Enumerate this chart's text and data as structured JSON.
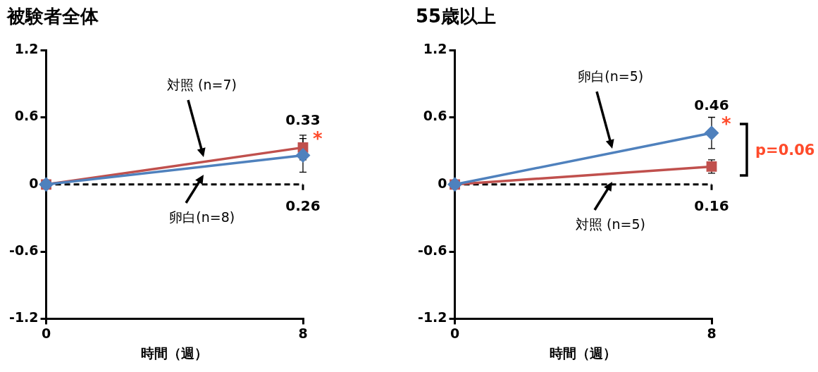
{
  "chart_data": [
    {
      "type": "line",
      "title": "被験者全体",
      "xlabel": "時間（週）",
      "categories": [
        "0",
        "8"
      ],
      "ylim": [
        -1.2,
        1.2
      ],
      "yticks": [
        -1.2,
        -0.6,
        0,
        0.6,
        1.2
      ],
      "grid": false,
      "legend": false,
      "series": [
        {
          "name": "卵白(n=8)",
          "color": "#4f81bd",
          "marker": "diamond",
          "values": [
            0,
            0.26
          ],
          "errors": [
            null,
            0.15
          ],
          "value_labels": [
            null,
            "0.26"
          ]
        },
        {
          "name": "対照 (n=7)",
          "color": "#c0504d",
          "marker": "square",
          "values": [
            0,
            0.33
          ],
          "errors": [
            null,
            0.11
          ],
          "value_labels": [
            null,
            "0.33"
          ]
        }
      ],
      "ref_lines": [
        {
          "axis": "y",
          "value": 0,
          "line_style": "dashed",
          "color": "#000000"
        }
      ],
      "annotations": [
        {
          "text": "*",
          "x": "8",
          "y": 0.33
        }
      ]
    },
    {
      "type": "line",
      "title": "55歳以上",
      "xlabel": "時間（週）",
      "categories": [
        "0",
        "8"
      ],
      "ylim": [
        -1.2,
        1.2
      ],
      "yticks": [
        -1.2,
        -0.6,
        0,
        0.6,
        1.2
      ],
      "grid": false,
      "legend": false,
      "series": [
        {
          "name": "卵白(n=5)",
          "color": "#4f81bd",
          "marker": "diamond",
          "values": [
            0,
            0.46
          ],
          "errors": [
            null,
            0.14
          ],
          "value_labels": [
            null,
            "0.46"
          ]
        },
        {
          "name": "対照 (n=5)",
          "color": "#c0504d",
          "marker": "square",
          "values": [
            0,
            0.16
          ],
          "errors": [
            null,
            0.06
          ],
          "value_labels": [
            null,
            "0.16"
          ]
        }
      ],
      "ref_lines": [
        {
          "axis": "y",
          "value": 0,
          "line_style": "dashed",
          "color": "#000000"
        }
      ],
      "annotations": [
        {
          "text": "*",
          "x": "8",
          "y": 0.46
        },
        "p=0.06"
      ]
    }
  ]
}
